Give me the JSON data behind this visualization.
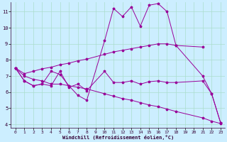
{
  "xlabel": "Windchill (Refroidissement éolien,°C)",
  "bg_color": "#cceeff",
  "grid_color": "#aaddcc",
  "line_color": "#990099",
  "xlim": [
    -0.5,
    23.5
  ],
  "ylim": [
    3.8,
    11.6
  ],
  "xticks": [
    0,
    1,
    2,
    3,
    4,
    5,
    6,
    7,
    8,
    9,
    10,
    11,
    12,
    13,
    14,
    15,
    16,
    17,
    18,
    19,
    20,
    21,
    22,
    23
  ],
  "yticks": [
    4,
    5,
    6,
    7,
    8,
    9,
    10,
    11
  ],
  "series": [
    {
      "x": [
        0,
        1,
        2,
        3,
        4,
        5,
        6,
        7,
        8,
        10,
        11,
        12,
        13,
        14,
        15,
        16,
        17,
        18,
        21,
        22,
        23
      ],
      "y": [
        7.5,
        6.7,
        6.4,
        6.5,
        7.3,
        7.1,
        6.4,
        5.8,
        5.5,
        9.2,
        11.2,
        10.7,
        11.3,
        10.1,
        11.4,
        11.5,
        11.0,
        8.9,
        7.0,
        5.9,
        4.1
      ]
    },
    {
      "x": [
        0,
        1,
        2,
        3,
        4,
        5,
        6,
        7,
        8,
        10,
        11,
        12,
        13,
        14,
        15,
        16,
        17,
        18,
        21
      ],
      "y": [
        7.5,
        7.15,
        7.3,
        7.45,
        7.55,
        7.7,
        7.8,
        7.95,
        8.05,
        8.35,
        8.5,
        8.6,
        8.7,
        8.8,
        8.9,
        9.0,
        9.0,
        8.9,
        8.8
      ]
    },
    {
      "x": [
        0,
        1,
        2,
        3,
        4,
        5,
        6,
        7,
        8,
        10,
        11,
        12,
        13,
        14,
        15,
        16,
        17,
        18,
        21,
        22,
        23
      ],
      "y": [
        7.5,
        6.7,
        6.4,
        6.5,
        6.4,
        7.3,
        6.3,
        6.5,
        6.1,
        7.3,
        6.6,
        6.6,
        6.7,
        6.5,
        6.65,
        6.7,
        6.6,
        6.6,
        6.7,
        5.9,
        4.1
      ]
    },
    {
      "x": [
        0,
        1,
        2,
        3,
        4,
        5,
        6,
        7,
        8,
        10,
        11,
        12,
        13,
        14,
        15,
        16,
        17,
        18,
        21,
        22,
        23
      ],
      "y": [
        7.5,
        7.0,
        6.8,
        6.7,
        6.5,
        6.5,
        6.4,
        6.3,
        6.2,
        5.9,
        5.75,
        5.6,
        5.5,
        5.35,
        5.2,
        5.1,
        4.95,
        4.8,
        4.4,
        4.2,
        4.05
      ]
    }
  ]
}
